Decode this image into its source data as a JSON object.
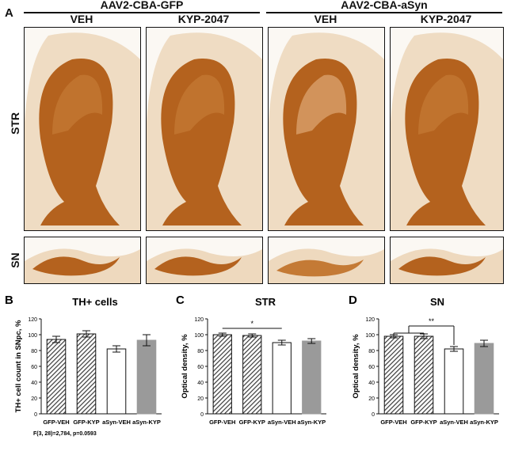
{
  "panel_a": {
    "letter": "A",
    "groups": [
      "AAV2-CBA-GFP",
      "AAV2-CBA-aSyn"
    ],
    "columns": [
      "VEH",
      "KYP-2047",
      "VEH",
      "KYP-2047"
    ],
    "rows": [
      "STR",
      "SN"
    ]
  },
  "colors": {
    "stain": "#b4621e",
    "stain_light": "#e6c59b",
    "hatch_fill": "#3a3a3a",
    "gray_bar": "#9a9a9a",
    "white_bar": "#ffffff"
  },
  "chart_data": [
    {
      "letter": "B",
      "type": "bar",
      "title": "TH+ cells",
      "xlabel": "",
      "ylabel": "TH+ cell count in SNpc, %",
      "categories": [
        "GFP-VEH",
        "GFP-KYP",
        "aSyn-VEH",
        "aSyn-KYP"
      ],
      "values": [
        94,
        101,
        82,
        93
      ],
      "errors": [
        4,
        4,
        4,
        7
      ],
      "bar_styles": [
        "hatch",
        "hatch",
        "white",
        "gray"
      ],
      "ylim": [
        0,
        120
      ],
      "yticks": [
        0,
        20,
        40,
        60,
        80,
        100,
        120
      ],
      "footnote": "F(3, 28)=2,784, p=0.0593",
      "significance": []
    },
    {
      "letter": "C",
      "type": "bar",
      "title": "STR",
      "xlabel": "",
      "ylabel": "Optical density, %",
      "categories": [
        "GFP-VEH",
        "GFP-KYP",
        "aSyn-VEH",
        "aSyn-KYP"
      ],
      "values": [
        100,
        99,
        90,
        92
      ],
      "errors": [
        2,
        2,
        3,
        3
      ],
      "bar_styles": [
        "hatch",
        "hatch",
        "white",
        "gray"
      ],
      "ylim": [
        0,
        120
      ],
      "yticks": [
        0,
        20,
        40,
        60,
        80,
        100,
        120
      ],
      "footnote": "",
      "significance": [
        {
          "label": "*",
          "from": [
            0
          ],
          "to": 2
        }
      ]
    },
    {
      "letter": "D",
      "type": "bar",
      "title": "SN",
      "xlabel": "",
      "ylabel": "Optical density, %",
      "categories": [
        "GFP-VEH",
        "GFP-KYP",
        "aSyn-VEH",
        "aSyn-KYP"
      ],
      "values": [
        98,
        98,
        82,
        89
      ],
      "errors": [
        2,
        3,
        3,
        4
      ],
      "bar_styles": [
        "hatch",
        "hatch",
        "white",
        "gray"
      ],
      "ylim": [
        0,
        120
      ],
      "yticks": [
        0,
        20,
        40,
        60,
        80,
        100,
        120
      ],
      "footnote": "",
      "significance": [
        {
          "label": "**",
          "from": [
            0,
            1
          ],
          "to": 2
        }
      ]
    }
  ]
}
